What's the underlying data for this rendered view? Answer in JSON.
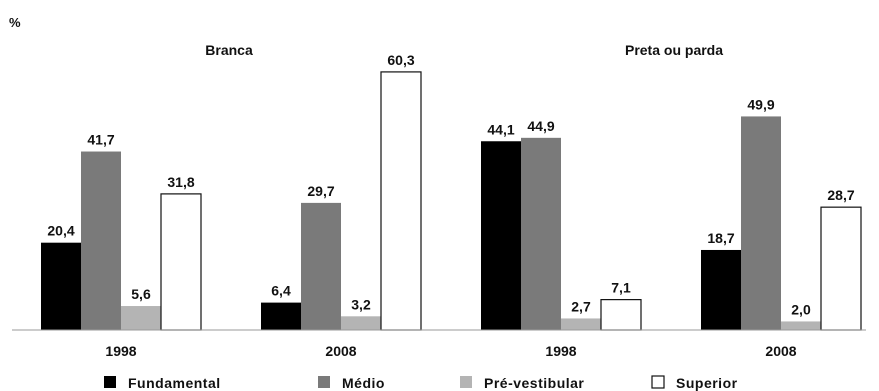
{
  "chart_data": {
    "type": "bar",
    "y_unit": "%",
    "ylim": [
      0,
      70
    ],
    "grid": false,
    "legend_position": "bottom",
    "panels": [
      {
        "title": "Branca",
        "groups": [
          {
            "x": "1998",
            "values": [
              20.4,
              41.7,
              5.6,
              31.8
            ],
            "labels": [
              "20,4",
              "41,7",
              "5,6",
              "31,8"
            ]
          },
          {
            "x": "2008",
            "values": [
              6.4,
              29.7,
              3.2,
              60.3
            ],
            "labels": [
              "6,4",
              "29,7",
              "3,2",
              "60,3"
            ]
          }
        ]
      },
      {
        "title": "Preta ou parda",
        "groups": [
          {
            "x": "1998",
            "values": [
              44.1,
              44.9,
              2.7,
              7.1
            ],
            "labels": [
              "44,1",
              "44,9",
              "2,7",
              "7,1"
            ]
          },
          {
            "x": "2008",
            "values": [
              18.7,
              49.9,
              2.0,
              28.7
            ],
            "labels": [
              "18,7",
              "49,9",
              "2,0",
              "28,7"
            ]
          }
        ]
      }
    ],
    "series": [
      {
        "name": "Fundamental",
        "color": "#000000"
      },
      {
        "name": "Médio",
        "color": "#7a7a7a"
      },
      {
        "name": "Pré-vestibular",
        "color": "#b4b4b4"
      },
      {
        "name": "Superior",
        "color": "#ffffff"
      }
    ]
  }
}
